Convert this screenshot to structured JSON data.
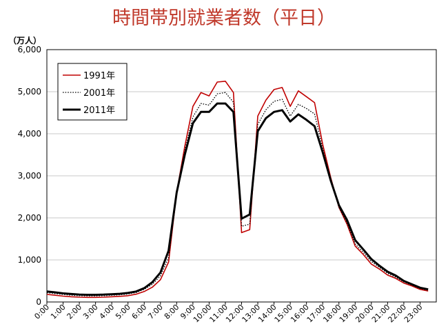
{
  "chart_data": {
    "type": "line",
    "title": "時間帯別就業者数（平日）",
    "unit_label": "（万人）",
    "ylim": [
      0,
      6000
    ],
    "y_ticks": [
      "0",
      "1,000",
      "2,000",
      "3,000",
      "4,000",
      "5,000",
      "6,000"
    ],
    "x_tick_labels": [
      "0:00",
      "1:00",
      "2:00",
      "3:00",
      "4:00",
      "5:00",
      "6:00",
      "7:00",
      "8:00",
      "9:00",
      "10:00",
      "11:00",
      "12:00",
      "13:00",
      "14:00",
      "15:00",
      "16:00",
      "17:00",
      "18:00",
      "19:00",
      "20:00",
      "21:00",
      "22:00",
      "23:00"
    ],
    "grid": true,
    "legend_position": "top-left",
    "x": [
      0,
      0.5,
      1,
      1.5,
      2,
      2.5,
      3,
      3.5,
      4,
      4.5,
      5,
      5.5,
      6,
      6.5,
      7,
      7.5,
      8,
      8.5,
      9,
      9.5,
      10,
      10.5,
      11,
      11.5,
      12,
      12.5,
      13,
      13.5,
      14,
      14.5,
      15,
      15.5,
      16,
      16.5,
      17,
      17.5,
      18,
      18.5,
      19,
      19.5,
      20,
      20.5,
      21,
      21.5,
      22,
      22.5,
      23,
      23.5
    ],
    "series": [
      {
        "name": "1991年",
        "color": "#c00000",
        "style": "solid",
        "values": [
          180,
          160,
          140,
          125,
          115,
          110,
          110,
          115,
          125,
          135,
          150,
          185,
          250,
          350,
          530,
          950,
          2600,
          3700,
          4650,
          4980,
          4900,
          5230,
          5250,
          4980,
          1650,
          1720,
          4420,
          4800,
          5050,
          5100,
          4650,
          5020,
          4880,
          4740,
          3750,
          2950,
          2250,
          1850,
          1330,
          1130,
          900,
          780,
          640,
          560,
          450,
          380,
          300,
          260
        ],
        "width": 1.6
      },
      {
        "name": "2001年",
        "color": "#000000",
        "style": "dotted",
        "values": [
          220,
          200,
          180,
          160,
          150,
          145,
          145,
          150,
          160,
          170,
          190,
          225,
          300,
          420,
          620,
          1050,
          2620,
          3600,
          4400,
          4720,
          4680,
          4950,
          4980,
          4750,
          1800,
          1850,
          4220,
          4570,
          4770,
          4820,
          4420,
          4700,
          4600,
          4470,
          3650,
          2900,
          2250,
          1880,
          1380,
          1180,
          960,
          820,
          680,
          590,
          480,
          400,
          320,
          280
        ],
        "width": 1.3
      },
      {
        "name": "2011年",
        "color": "#000000",
        "style": "solid",
        "values": [
          250,
          230,
          205,
          190,
          175,
          170,
          170,
          175,
          185,
          195,
          215,
          250,
          330,
          470,
          700,
          1220,
          2600,
          3500,
          4250,
          4520,
          4520,
          4720,
          4720,
          4520,
          1980,
          2080,
          4060,
          4370,
          4520,
          4560,
          4290,
          4460,
          4330,
          4180,
          3560,
          2880,
          2300,
          1950,
          1470,
          1250,
          1020,
          860,
          720,
          630,
          500,
          420,
          340,
          300
        ],
        "width": 3
      }
    ]
  }
}
